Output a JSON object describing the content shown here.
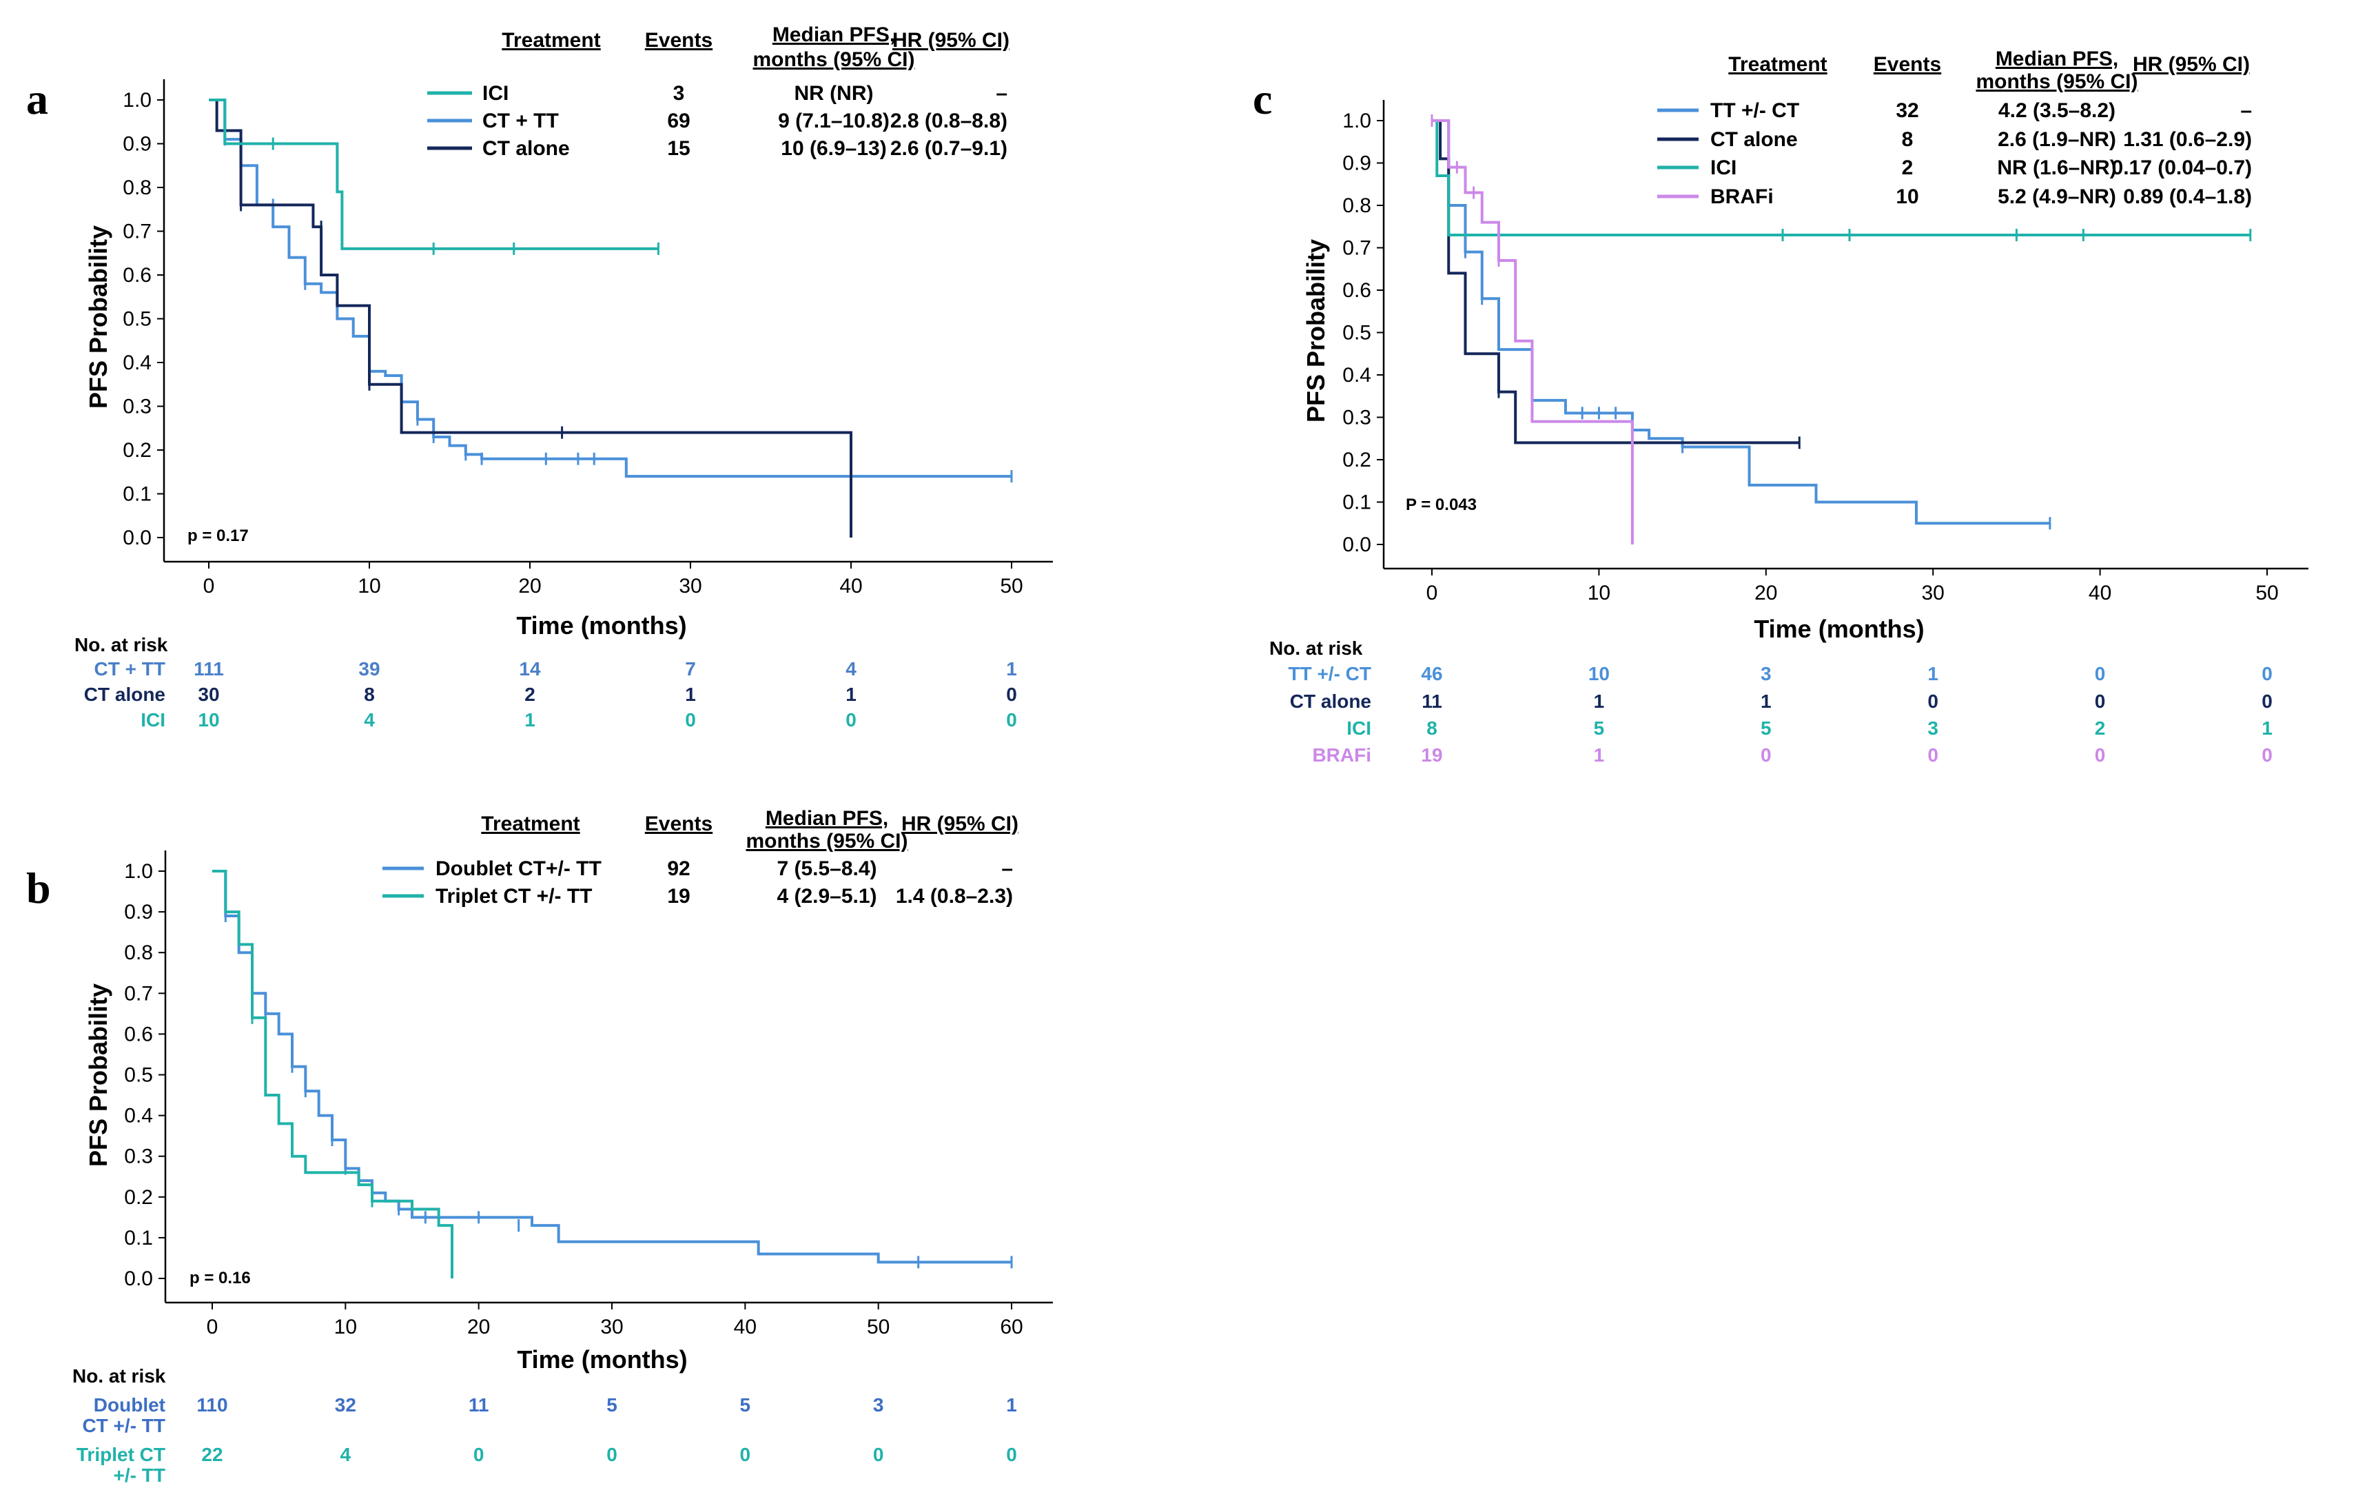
{
  "chart_data": [
    {
      "id": "a",
      "panel_letter": "a",
      "type": "line",
      "subtype": "kaplan-meier",
      "xlabel": "Time (months)",
      "ylabel": "PFS Probability",
      "xlim": [
        0,
        50
      ],
      "ylim": [
        0,
        1
      ],
      "xticks": [
        "0",
        "10",
        "20",
        "30",
        "40",
        "50"
      ],
      "yticks": [
        "0.0",
        "0.1",
        "0.2",
        "0.3",
        "0.4",
        "0.5",
        "0.6",
        "0.7",
        "0.8",
        "0.9",
        "1.0"
      ],
      "pvalue": "p = 0.17",
      "table_headers": [
        "Treatment",
        "Events",
        "Median PFS,\nmonths (95% CI)",
        "HR (95% CI)"
      ],
      "legend": [
        {
          "treatment": "ICI",
          "events": "3",
          "median": "NR (NR)",
          "hr": "–",
          "color": "#20b2aa"
        },
        {
          "treatment": "CT + TT",
          "events": "69",
          "median": "9 (7.1–10.8)",
          "hr": "2.8 (0.8–8.8)",
          "color": "#4a90d9"
        },
        {
          "treatment": "CT alone",
          "events": "15",
          "median": "10 (6.9–13)",
          "hr": "2.6 (0.7–9.1)",
          "color": "#14275a"
        }
      ],
      "series": [
        {
          "name": "CT + TT",
          "color": "#4a90d9",
          "x": [
            0,
            1,
            2,
            3,
            4,
            5,
            6,
            7,
            8,
            9,
            10,
            11,
            12,
            13,
            14,
            15,
            16,
            17,
            26,
            50
          ],
          "y": [
            1.0,
            0.91,
            0.85,
            0.76,
            0.71,
            0.64,
            0.58,
            0.56,
            0.5,
            0.46,
            0.38,
            0.37,
            0.31,
            0.27,
            0.23,
            0.21,
            0.19,
            0.18,
            0.14,
            0.14
          ],
          "censor_x": [
            1,
            4,
            6,
            8,
            13,
            14,
            16,
            17,
            21,
            23,
            24,
            40,
            50
          ],
          "censor_y": [
            0.91,
            0.76,
            0.58,
            0.56,
            0.27,
            0.23,
            0.19,
            0.18,
            0.18,
            0.18,
            0.18,
            0.14,
            0.14
          ]
        },
        {
          "name": "CT alone",
          "color": "#14275a",
          "x": [
            0,
            0.5,
            2,
            4,
            5,
            6.5,
            7,
            8,
            10,
            12,
            22,
            40,
            40
          ],
          "y": [
            1.0,
            0.93,
            0.76,
            0.76,
            0.76,
            0.71,
            0.6,
            0.53,
            0.35,
            0.24,
            0.24,
            0.24,
            0.0
          ],
          "censor_x": [
            2,
            7,
            10,
            22
          ],
          "censor_y": [
            0.76,
            0.71,
            0.35,
            0.24
          ]
        },
        {
          "name": "ICI",
          "color": "#20b2aa",
          "x": [
            0,
            1,
            7,
            8,
            8.3,
            28
          ],
          "y": [
            1.0,
            0.9,
            0.9,
            0.79,
            0.66,
            0.66
          ],
          "censor_x": [
            4,
            14,
            19,
            28
          ],
          "censor_y": [
            0.9,
            0.66,
            0.66,
            0.66
          ]
        }
      ],
      "risk_title": "No. at risk",
      "risk_table": [
        {
          "label": "CT + TT",
          "values": [
            "111",
            "39",
            "14",
            "7",
            "4",
            "1"
          ],
          "color": "#4a7fc8"
        },
        {
          "label": "CT alone",
          "values": [
            "30",
            "8",
            "2",
            "1",
            "1",
            "0"
          ],
          "color": "#14275a"
        },
        {
          "label": "ICI",
          "values": [
            "10",
            "4",
            "1",
            "0",
            "0",
            "0"
          ],
          "color": "#20b2aa"
        }
      ]
    },
    {
      "id": "b",
      "panel_letter": "b",
      "type": "line",
      "subtype": "kaplan-meier",
      "xlabel": "Time (months)",
      "ylabel": "PFS Probability",
      "xlim": [
        0,
        60
      ],
      "ylim": [
        0,
        1
      ],
      "xticks": [
        "0",
        "10",
        "20",
        "30",
        "40",
        "50",
        "60"
      ],
      "yticks": [
        "0.0",
        "0.1",
        "0.2",
        "0.3",
        "0.4",
        "0.5",
        "0.6",
        "0.7",
        "0.8",
        "0.9",
        "1.0"
      ],
      "pvalue": "p = 0.16",
      "table_headers": [
        "Treatment",
        "Events",
        "Median PFS,\nmonths (95% CI)",
        "HR (95% CI)"
      ],
      "legend": [
        {
          "treatment": "Doublet  CT+/- TT",
          "events": "92",
          "median": "7 (5.5–8.4)",
          "hr": "–",
          "color": "#4a90d9"
        },
        {
          "treatment": "Triplet  CT +/- TT",
          "events": "19",
          "median": "4 (2.9–5.1)",
          "hr": "1.4 (0.8–2.3)",
          "color": "#20b2aa"
        }
      ],
      "series": [
        {
          "name": "Doublet CT+/- TT",
          "color": "#4a90d9",
          "x": [
            0,
            1,
            2,
            3,
            4,
            5,
            6,
            7,
            8,
            9,
            10,
            11,
            12,
            13,
            14,
            15,
            20,
            24,
            26,
            40,
            41,
            50,
            60
          ],
          "y": [
            1.0,
            0.89,
            0.8,
            0.7,
            0.65,
            0.6,
            0.52,
            0.46,
            0.4,
            0.34,
            0.27,
            0.24,
            0.21,
            0.19,
            0.17,
            0.15,
            0.15,
            0.13,
            0.09,
            0.09,
            0.06,
            0.04,
            0.04
          ],
          "censor_x": [
            1,
            4,
            6,
            7,
            9,
            10,
            14,
            16,
            20,
            23,
            53,
            60
          ],
          "censor_y": [
            0.89,
            0.65,
            0.52,
            0.46,
            0.34,
            0.27,
            0.17,
            0.15,
            0.15,
            0.13,
            0.04,
            0.04
          ]
        },
        {
          "name": "Triplet CT +/- TT",
          "color": "#20b2aa",
          "x": [
            0,
            1,
            2,
            3,
            4,
            5,
            6,
            7,
            8,
            11,
            12,
            15,
            17,
            18
          ],
          "y": [
            1.0,
            0.9,
            0.82,
            0.64,
            0.45,
            0.38,
            0.3,
            0.26,
            0.26,
            0.23,
            0.19,
            0.17,
            0.13,
            0.0
          ],
          "censor_x": [
            3,
            12
          ],
          "censor_y": [
            0.64,
            0.19
          ]
        }
      ],
      "risk_title": "No. at risk",
      "risk_table": [
        {
          "label": "Doublet",
          "label2": "CT +/- TT",
          "values": [
            "110",
            "32",
            "11",
            "5",
            "5",
            "3",
            "1"
          ],
          "color": "#3d6fc4"
        },
        {
          "label": "Triplet CT",
          "label2": "+/- TT",
          "values": [
            "22",
            "4",
            "0",
            "0",
            "0",
            "0",
            "0"
          ],
          "color": "#20b2aa"
        }
      ]
    },
    {
      "id": "c",
      "panel_letter": "c",
      "type": "line",
      "subtype": "kaplan-meier",
      "xlabel": "Time (months)",
      "ylabel": "PFS Probability",
      "xlim": [
        0,
        50
      ],
      "ylim": [
        0,
        1
      ],
      "xticks": [
        "0",
        "10",
        "20",
        "30",
        "40",
        "50"
      ],
      "yticks": [
        "0.0",
        "0.1",
        "0.2",
        "0.3",
        "0.4",
        "0.5",
        "0.6",
        "0.7",
        "0.8",
        "0.9",
        "1.0"
      ],
      "pvalue": "P = 0.043",
      "table_headers": [
        "Treatment",
        "Events",
        "Median PFS,\nmonths (95% CI)",
        "HR (95% CI)"
      ],
      "legend": [
        {
          "treatment": "TT +/- CT",
          "events": "32",
          "median": "4.2 (3.5–8.2)",
          "hr": "–",
          "color": "#4a90d9"
        },
        {
          "treatment": "CT alone",
          "events": "8",
          "median": "2.6 (1.9–NR)",
          "hr": "1.31 (0.6–2.9)",
          "color": "#14275a"
        },
        {
          "treatment": "ICI",
          "events": "2",
          "median": "NR (1.6–NR)",
          "hr": "0.17 (0.04–0.7)",
          "color": "#20b2aa"
        },
        {
          "treatment": "BRAFi",
          "events": "10",
          "median": "5.2 (4.9–NR)",
          "hr": "0.89 (0.4–1.8)",
          "color": "#cc88e8"
        }
      ],
      "series": [
        {
          "name": "TT +/- CT",
          "color": "#4a90d9",
          "x": [
            0,
            1,
            2,
            3,
            4,
            6,
            8,
            12,
            13,
            15,
            19,
            23,
            29,
            37
          ],
          "y": [
            1.0,
            0.8,
            0.69,
            0.58,
            0.46,
            0.34,
            0.31,
            0.27,
            0.25,
            0.23,
            0.14,
            0.1,
            0.05,
            0.05
          ],
          "censor_x": [
            1,
            2,
            3,
            9,
            10,
            11,
            15,
            37
          ],
          "censor_y": [
            0.8,
            0.69,
            0.58,
            0.31,
            0.31,
            0.31,
            0.23,
            0.05
          ]
        },
        {
          "name": "CT alone",
          "color": "#14275a",
          "x": [
            0,
            0.5,
            1,
            2,
            4,
            5,
            22
          ],
          "y": [
            1.0,
            0.91,
            0.64,
            0.45,
            0.36,
            0.24,
            0.24
          ],
          "censor_x": [
            4,
            22
          ],
          "censor_y": [
            0.36,
            0.24
          ]
        },
        {
          "name": "ICI",
          "color": "#20b2aa",
          "x": [
            0,
            0.3,
            1,
            49
          ],
          "y": [
            1.0,
            0.87,
            0.73,
            0.73
          ],
          "censor_x": [
            21,
            25,
            35,
            39,
            49
          ],
          "censor_y": [
            0.73,
            0.73,
            0.73,
            0.73,
            0.73
          ]
        },
        {
          "name": "BRAFi",
          "color": "#cc88e8",
          "x": [
            0,
            1,
            2,
            3,
            4,
            5,
            6,
            8,
            12,
            12
          ],
          "y": [
            1.0,
            0.89,
            0.83,
            0.76,
            0.67,
            0.48,
            0.29,
            0.29,
            0.29,
            0.0
          ],
          "censor_x": [
            0,
            1.5,
            2.5,
            4
          ],
          "censor_y": [
            1.0,
            0.89,
            0.83,
            0.67
          ]
        }
      ],
      "risk_title": "No. at risk",
      "risk_table": [
        {
          "label": "TT +/- CT",
          "values": [
            "46",
            "10",
            "3",
            "1",
            "0",
            "0"
          ],
          "color": "#4a90d9"
        },
        {
          "label": "CT alone",
          "values": [
            "11",
            "1",
            "1",
            "0",
            "0",
            "0"
          ],
          "color": "#14275a"
        },
        {
          "label": "ICI",
          "values": [
            "8",
            "5",
            "5",
            "3",
            "2",
            "1"
          ],
          "color": "#20b2aa"
        },
        {
          "label": "BRAFi",
          "values": [
            "19",
            "1",
            "0",
            "0",
            "0",
            "0"
          ],
          "color": "#cc88e8"
        }
      ]
    }
  ]
}
